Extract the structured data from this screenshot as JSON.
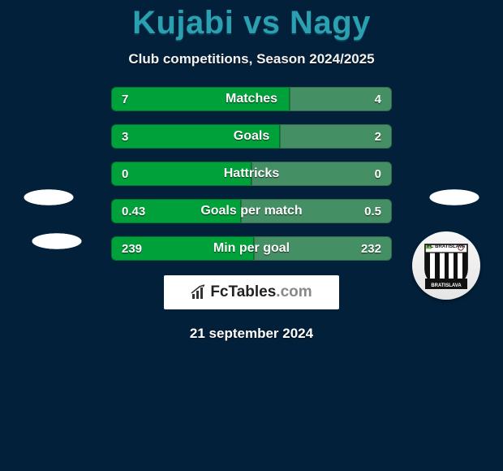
{
  "title": "Kujabi vs Nagy",
  "subtitle": "Club competitions, Season 2024/2025",
  "colors": {
    "left_bar": "#00a13a",
    "right_bar": "#458f64",
    "title_color": "#2aa0b0",
    "bg": "#02203a"
  },
  "club2": {
    "top_label": "FC BRATISLAVA",
    "bottom_label": "BRATISLAVA"
  },
  "stats": [
    {
      "label": "Matches",
      "left_val": "7",
      "right_val": "4",
      "left_w": 220,
      "right_w": 126
    },
    {
      "label": "Goals",
      "left_val": "3",
      "right_val": "2",
      "left_w": 208,
      "right_w": 138
    },
    {
      "label": "Hattricks",
      "left_val": "0",
      "right_val": "0",
      "left_w": 173,
      "right_w": 173
    },
    {
      "label": "Goals per match",
      "left_val": "0.43",
      "right_val": "0.5",
      "left_w": 160,
      "right_w": 186
    },
    {
      "label": "Min per goal",
      "left_val": "239",
      "right_val": "232",
      "left_w": 176,
      "right_w": 170
    }
  ],
  "brand": {
    "name": "FcTables",
    "tld": ".com"
  },
  "date": "21 september 2024"
}
